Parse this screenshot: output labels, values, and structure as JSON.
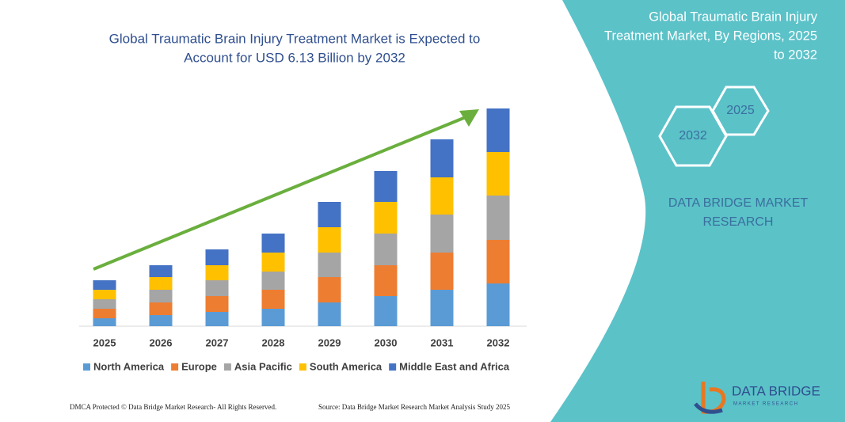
{
  "chart_data": {
    "type": "stacked-bar",
    "title_lines": [
      "Global Traumatic Brain Injury Treatment Market is Expected to",
      "Account for USD 6.13 Billion by 2032"
    ],
    "categories": [
      "2025",
      "2026",
      "2027",
      "2028",
      "2029",
      "2030",
      "2031",
      "2032"
    ],
    "series": [
      {
        "name": "North America",
        "color": "#5b9bd5",
        "values": [
          10,
          14,
          18,
          22,
          30,
          38,
          46,
          54
        ]
      },
      {
        "name": "Europe",
        "color": "#ed7d31",
        "values": [
          12,
          16,
          20,
          24,
          32,
          39,
          47,
          55
        ]
      },
      {
        "name": "Asia Pacific",
        "color": "#a5a5a5",
        "values": [
          12,
          16,
          20,
          23,
          31,
          40,
          48,
          56
        ]
      },
      {
        "name": "South America",
        "color": "#ffc000",
        "values": [
          12,
          16,
          19,
          24,
          32,
          40,
          47,
          55
        ]
      },
      {
        "name": "Middle East and Africa",
        "color": "#4472c4",
        "values": [
          12,
          15,
          20,
          24,
          32,
          39,
          48,
          55
        ]
      }
    ]
  },
  "panel": {
    "title_lines": [
      "Global Traumatic Brain Injury",
      "Treatment Market, By Regions, 2025",
      "to 2032"
    ],
    "hex_start": "2025",
    "hex_end": "2032",
    "company_lines": [
      "DATA BRIDGE MARKET",
      "RESEARCH"
    ]
  },
  "footer": {
    "left": "DMCA Protected © Data Bridge Market Research- All Rights Reserved.",
    "right": "Source: Data Bridge Market Research Market Analysis Study 2025"
  },
  "logo": {
    "name": "DATA BRIDGE",
    "tagline": "MARKET RESEARCH"
  }
}
